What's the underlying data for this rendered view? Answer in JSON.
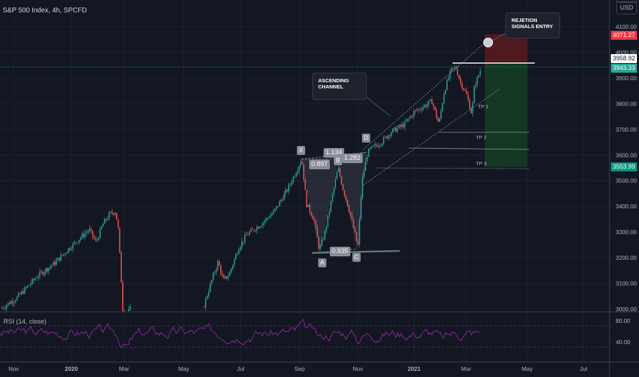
{
  "header": {
    "title": "S&P 500 Index, 4h, SPCFD",
    "currency": "USD"
  },
  "rsi": {
    "label": "RSI (14, close)",
    "axis_ticks": [
      "80.00",
      "40.00"
    ]
  },
  "annotations": {
    "rejection_note": "REJETION\nSIGNALS ENTRY",
    "channel_note": "ASCENDING\nCHANNEL",
    "points": [
      "X",
      "A",
      "B",
      "C",
      "D"
    ],
    "ratios": [
      "0.897",
      "1.134",
      "1.282",
      "0.935"
    ],
    "targets": [
      "TP 1",
      "TP 2",
      "TP 3"
    ]
  },
  "price_tags": [
    {
      "text": "4071.27",
      "bg": "#f23645",
      "fg": "#ffffff"
    },
    {
      "text": "3958.92",
      "bg": "#ffffff",
      "fg": "#131722"
    },
    {
      "text": "3943.33",
      "bg": "#26a69a",
      "fg": "#ffffff"
    },
    {
      "text": "3553.99",
      "bg": "#089981",
      "fg": "#ffffff"
    }
  ],
  "colors": {
    "background": "#131722",
    "up_candle": "#26a69a",
    "down_candle": "#ef5350",
    "rsi_line": "#9c27b0",
    "stop_zone": "#5b1a1f",
    "target_zone": "#153b24"
  },
  "chart_data": {
    "type": "candlestick",
    "title": "S&P 500 Index, 4h, SPCFD",
    "x_tick_labels": [
      "Nov",
      "2020",
      "Mar",
      "May",
      "Jul",
      "Sep",
      "Nov",
      "2021",
      "Mar",
      "May",
      "Jul"
    ],
    "y_tick_labels": [
      "4100.00",
      "4000.00",
      "3900.00",
      "3800.00",
      "3700.00",
      "3600.00",
      "3500.00",
      "3400.00",
      "3300.00",
      "3200.00",
      "3100.00",
      "3000.00"
    ],
    "ylim": [
      3000,
      4110
    ],
    "approximate_closes": [
      {
        "x": "Nov 2019",
        "y": 3020
      },
      {
        "x": "Dec 2019",
        "y": 3150
      },
      {
        "x": "Jan 2020",
        "y": 3280
      },
      {
        "x": "Feb 2020",
        "y": 3380
      },
      {
        "x": "Mar 2020",
        "y": 2900
      },
      {
        "x": "Jun 2020",
        "y": 3050
      },
      {
        "x": "Jul 2020",
        "y": 3250
      },
      {
        "x": "Aug 2020",
        "y": 3450
      },
      {
        "x": "Sep 2020",
        "y": 3570
      },
      {
        "x": "Sep 2020 (A)",
        "y": 3230
      },
      {
        "x": "Oct 2020 (B)",
        "y": 3540
      },
      {
        "x": "Nov 2020 (C)",
        "y": 3240
      },
      {
        "x": "Nov 2020 (D)",
        "y": 3630
      },
      {
        "x": "Dec 2020",
        "y": 3700
      },
      {
        "x": "Jan 2021",
        "y": 3800
      },
      {
        "x": "Feb 2021",
        "y": 3950
      },
      {
        "x": "Mar 2021",
        "y": 3800
      },
      {
        "x": "Mar 2021",
        "y": 3943
      }
    ],
    "harmonic_points": [
      {
        "label": "X",
        "y": 3590
      },
      {
        "label": "A",
        "y": 3225
      },
      {
        "label": "B",
        "y": 3550
      },
      {
        "label": "C",
        "y": 3235
      },
      {
        "label": "D",
        "y": 3640
      }
    ],
    "trade": {
      "entry": 3958.92,
      "stop": 4071.27,
      "target": 3553.99
    },
    "rsi": {
      "length": 14,
      "source": "close",
      "ylim": [
        20,
        100
      ],
      "levels": [
        70,
        30
      ]
    }
  }
}
